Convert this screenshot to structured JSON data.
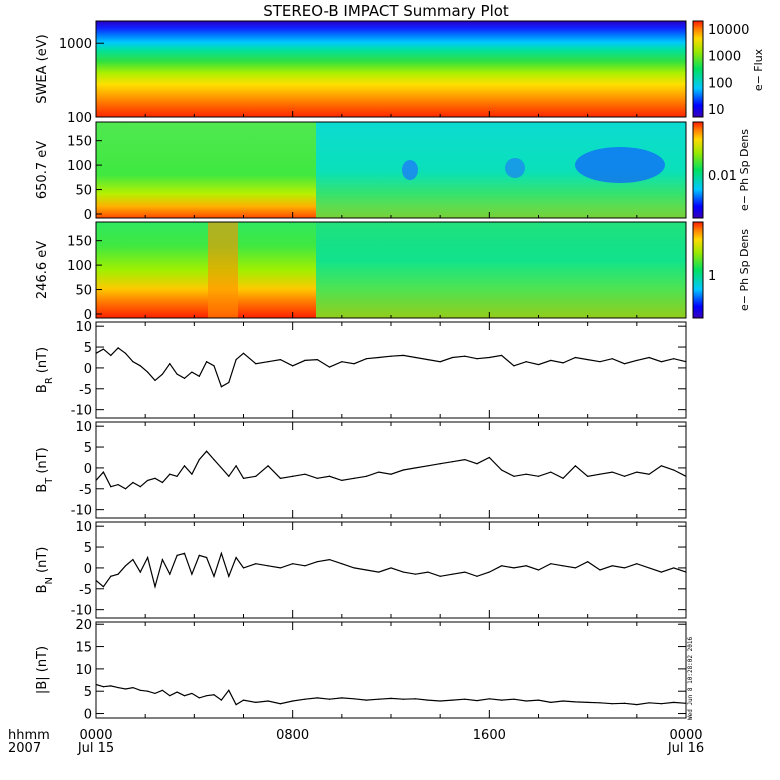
{
  "title": "STEREO-B IMPACT Summary Plot",
  "time_axis": {
    "row1_label": "hhmm",
    "row2_label": "2007",
    "ticks": [
      {
        "hour": 0,
        "time": "0000",
        "date": "Jul 15"
      },
      {
        "hour": 8,
        "time": "0800",
        "date": ""
      },
      {
        "hour": 16,
        "time": "1600",
        "date": ""
      },
      {
        "hour": 24,
        "time": "0000",
        "date": "Jul 16"
      }
    ]
  },
  "timestamp": "Wed Jun  8 10:28:02 2016",
  "colors": {
    "line": "#000000",
    "background": "#ffffff"
  },
  "chart_data": [
    {
      "type": "heatmap",
      "ylabel": "SWEA (eV)",
      "yscale": "log",
      "ylim": [
        100,
        2000
      ],
      "yticks": [
        "100",
        "1000"
      ],
      "colorbar_label": "e− Flux",
      "colorbar_ticks": [
        "10",
        "100",
        "1000",
        "10000"
      ],
      "colorbar_scale": "log",
      "colorbar_range": [
        5,
        20000
      ],
      "description_bands": [
        "high flux (red) below ~130 eV",
        "orange ~180 eV",
        "yellow ~300 eV",
        "green ~500 eV",
        "cyan ~1000 eV",
        "blue above ~1400 eV"
      ]
    },
    {
      "type": "heatmap",
      "ylabel": "650.7 eV",
      "ylim": [
        0,
        180
      ],
      "yticks": [
        "0",
        "50",
        "100",
        "150"
      ],
      "colorbar_label": "e− Ph Sp Dens",
      "colorbar_ticks": [
        "0.01"
      ],
      "colorbar_scale": "log"
    },
    {
      "type": "heatmap",
      "ylabel": "246.6 eV",
      "ylim": [
        0,
        180
      ],
      "yticks": [
        "0",
        "50",
        "100",
        "150"
      ],
      "colorbar_label": "e− Ph Sp Dens",
      "colorbar_ticks": [
        "1"
      ],
      "colorbar_scale": "log"
    },
    {
      "type": "line",
      "ylabel": "B_R (nT)",
      "ylabel_main": "B",
      "ylabel_sub": "R",
      "ylabel_unit": "(nT)",
      "ylim": [
        -12,
        11
      ],
      "yticks": [
        "-10",
        "-5",
        "0",
        "5",
        "10"
      ],
      "x": [
        0,
        0.3,
        0.6,
        0.9,
        1.2,
        1.5,
        1.8,
        2.1,
        2.4,
        2.7,
        3.0,
        3.3,
        3.6,
        3.9,
        4.2,
        4.5,
        4.8,
        5.1,
        5.4,
        5.7,
        6.0,
        6.5,
        7.0,
        7.5,
        8.0,
        8.5,
        9.0,
        9.5,
        10.0,
        10.5,
        11.0,
        11.5,
        12.0,
        12.5,
        13.0,
        13.5,
        14.0,
        14.5,
        15.0,
        15.5,
        16.0,
        16.5,
        17.0,
        17.5,
        18.0,
        18.5,
        19.0,
        19.5,
        20.0,
        20.5,
        21.0,
        21.5,
        22.0,
        22.5,
        23.0,
        23.5,
        24.0
      ],
      "y": [
        3.5,
        4.5,
        3.0,
        4.8,
        3.5,
        1.5,
        0.5,
        -1.0,
        -3.0,
        -1.5,
        1.0,
        -1.5,
        -2.5,
        -1.0,
        -2.0,
        1.5,
        0.5,
        -4.5,
        -3.5,
        2.0,
        3.5,
        1.0,
        1.5,
        2.0,
        0.5,
        1.8,
        2.0,
        0.2,
        1.5,
        1.0,
        2.2,
        2.5,
        2.8,
        3.0,
        2.5,
        2.0,
        1.5,
        2.5,
        2.8,
        2.2,
        2.5,
        3.0,
        0.5,
        1.5,
        0.8,
        1.8,
        1.2,
        2.5,
        2.0,
        1.5,
        2.2,
        1.0,
        1.8,
        2.5,
        1.5,
        2.2,
        1.5
      ]
    },
    {
      "type": "line",
      "ylabel": "B_T (nT)",
      "ylabel_main": "B",
      "ylabel_sub": "T",
      "ylabel_unit": "(nT)",
      "ylim": [
        -12,
        11
      ],
      "yticks": [
        "-10",
        "-5",
        "0",
        "5",
        "10"
      ],
      "x": [
        0,
        0.3,
        0.6,
        0.9,
        1.2,
        1.5,
        1.8,
        2.1,
        2.4,
        2.7,
        3.0,
        3.3,
        3.6,
        3.9,
        4.2,
        4.5,
        4.8,
        5.1,
        5.4,
        5.7,
        6.0,
        6.5,
        7.0,
        7.5,
        8.0,
        8.5,
        9.0,
        9.5,
        10.0,
        10.5,
        11.0,
        11.5,
        12.0,
        12.5,
        13.0,
        13.5,
        14.0,
        14.5,
        15.0,
        15.5,
        16.0,
        16.5,
        17.0,
        17.5,
        18.0,
        18.5,
        19.0,
        19.5,
        20.0,
        20.5,
        21.0,
        21.5,
        22.0,
        22.5,
        23.0,
        23.5,
        24.0
      ],
      "y": [
        -3.0,
        -1.0,
        -4.5,
        -4.0,
        -5.0,
        -3.5,
        -4.5,
        -3.0,
        -2.5,
        -3.5,
        -1.5,
        -2.0,
        0.5,
        -1.5,
        2.0,
        4.0,
        2.0,
        0.0,
        -2.0,
        0.5,
        -2.5,
        -2.0,
        0.5,
        -2.5,
        -2.0,
        -1.5,
        -2.5,
        -2.0,
        -3.0,
        -2.5,
        -2.0,
        -1.0,
        -1.5,
        -0.5,
        0.0,
        0.5,
        1.0,
        1.5,
        2.0,
        1.0,
        2.5,
        -0.5,
        -2.0,
        -1.5,
        -2.0,
        -1.0,
        -2.5,
        0.5,
        -2.0,
        -1.5,
        -1.0,
        -2.0,
        -1.0,
        -1.5,
        0.5,
        -0.5,
        -2.0
      ]
    },
    {
      "type": "line",
      "ylabel": "B_N (nT)",
      "ylabel_main": "B",
      "ylabel_sub": "N",
      "ylabel_unit": "(nT)",
      "ylim": [
        -12,
        11
      ],
      "yticks": [
        "-10",
        "-5",
        "0",
        "5",
        "10"
      ],
      "x": [
        0,
        0.3,
        0.6,
        0.9,
        1.2,
        1.5,
        1.8,
        2.1,
        2.4,
        2.7,
        3.0,
        3.3,
        3.6,
        3.9,
        4.2,
        4.5,
        4.8,
        5.1,
        5.4,
        5.7,
        6.0,
        6.5,
        7.0,
        7.5,
        8.0,
        8.5,
        9.0,
        9.5,
        10.0,
        10.5,
        11.0,
        11.5,
        12.0,
        12.5,
        13.0,
        13.5,
        14.0,
        14.5,
        15.0,
        15.5,
        16.0,
        16.5,
        17.0,
        17.5,
        18.0,
        18.5,
        19.0,
        19.5,
        20.0,
        20.5,
        21.0,
        21.5,
        22.0,
        22.5,
        23.0,
        23.5,
        24.0
      ],
      "y": [
        -3.0,
        -4.5,
        -2.0,
        -1.5,
        0.5,
        2.0,
        -1.0,
        2.5,
        -4.5,
        2.0,
        -1.5,
        3.0,
        3.5,
        -1.5,
        3.0,
        2.5,
        -2.0,
        3.5,
        -2.0,
        2.5,
        0.0,
        1.0,
        0.5,
        0.0,
        1.0,
        0.5,
        1.5,
        2.0,
        1.0,
        0.0,
        -0.5,
        -1.0,
        0.0,
        -1.0,
        -1.5,
        -1.0,
        -2.0,
        -1.5,
        -1.0,
        -2.0,
        -1.0,
        0.5,
        0.0,
        0.5,
        -0.5,
        1.0,
        0.5,
        0.0,
        1.5,
        -0.5,
        0.5,
        0.0,
        1.0,
        0.0,
        -1.0,
        0.0,
        -1.0
      ]
    },
    {
      "type": "line",
      "ylabel": "|B| (nT)",
      "ylabel_display": "|B| (nT)",
      "ylim": [
        -1,
        20.5
      ],
      "yticks": [
        "0",
        "5",
        "10",
        "15",
        "20"
      ],
      "x": [
        0,
        0.3,
        0.6,
        0.9,
        1.2,
        1.5,
        1.8,
        2.1,
        2.4,
        2.7,
        3.0,
        3.3,
        3.6,
        3.9,
        4.2,
        4.5,
        4.8,
        5.1,
        5.4,
        5.7,
        6.0,
        6.5,
        7.0,
        7.5,
        8.0,
        8.5,
        9.0,
        9.5,
        10.0,
        10.5,
        11.0,
        11.5,
        12.0,
        12.5,
        13.0,
        13.5,
        14.0,
        14.5,
        15.0,
        15.5,
        16.0,
        16.5,
        17.0,
        17.5,
        18.0,
        18.5,
        19.0,
        19.5,
        20.0,
        20.5,
        21.0,
        21.5,
        22.0,
        22.5,
        23.0,
        23.5,
        24.0
      ],
      "y": [
        6.5,
        6.0,
        6.2,
        5.8,
        5.5,
        5.8,
        5.2,
        5.0,
        4.5,
        5.2,
        4.0,
        4.8,
        4.0,
        4.5,
        3.5,
        4.0,
        4.2,
        3.0,
        5.2,
        2.0,
        3.0,
        2.5,
        2.8,
        2.2,
        2.8,
        3.2,
        3.5,
        3.2,
        3.5,
        3.3,
        3.0,
        3.2,
        3.4,
        3.2,
        3.3,
        3.0,
        2.8,
        3.0,
        3.2,
        2.9,
        3.3,
        3.0,
        3.2,
        2.8,
        3.0,
        2.5,
        2.8,
        2.6,
        2.5,
        2.4,
        2.2,
        2.3,
        2.0,
        2.4,
        2.2,
        2.5,
        2.3
      ]
    }
  ]
}
